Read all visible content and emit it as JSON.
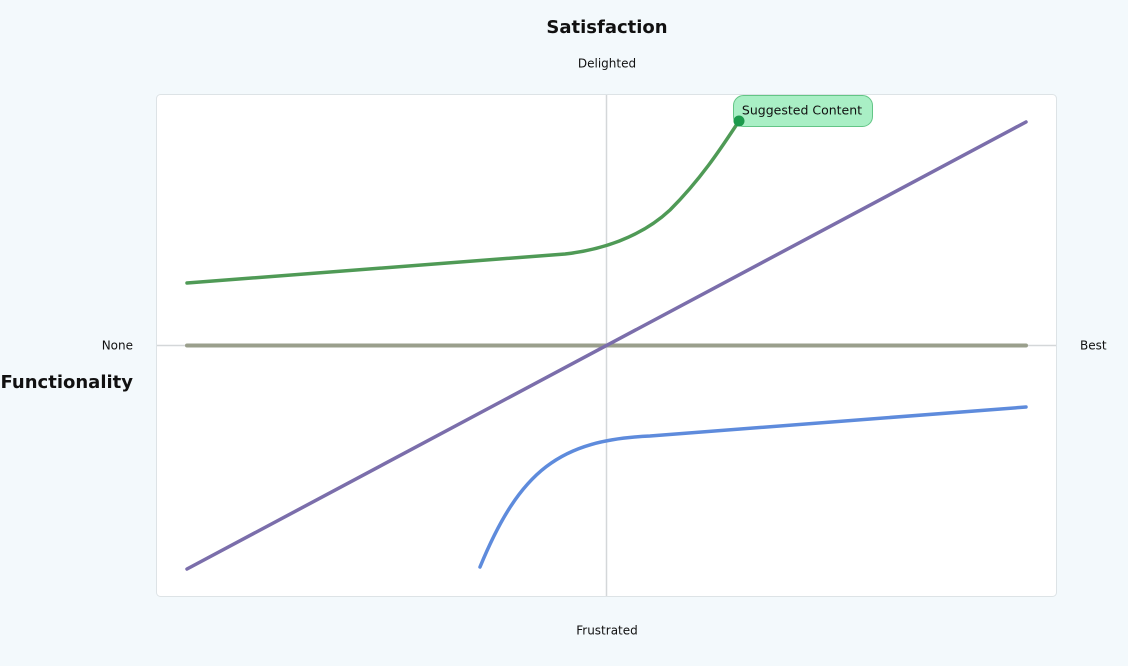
{
  "title": "Satisfaction",
  "axis_top": "Delighted",
  "axis_bottom": "Frustrated",
  "axis_left": "None",
  "axis_right": "Best",
  "axis_title": "Functionality",
  "annotation": "Suggested Content"
}
